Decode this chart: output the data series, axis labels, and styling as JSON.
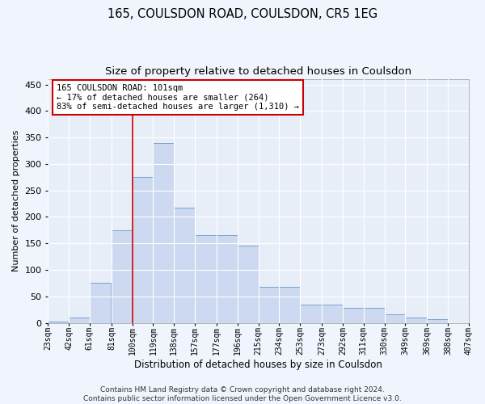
{
  "title1": "165, COULSDON ROAD, COULSDON, CR5 1EG",
  "title2": "Size of property relative to detached houses in Coulsdon",
  "xlabel": "Distribution of detached houses by size in Coulsdon",
  "ylabel": "Number of detached properties",
  "bar_left_edges": [
    23,
    42,
    61,
    81,
    100,
    119,
    138,
    157,
    177,
    196,
    215,
    234,
    253,
    273,
    292,
    311,
    330,
    349,
    369,
    388
  ],
  "bar_widths": [
    19,
    19,
    19,
    19,
    19,
    19,
    19,
    20,
    19,
    19,
    19,
    19,
    20,
    19,
    19,
    19,
    19,
    20,
    19,
    19
  ],
  "bar_heights": [
    3,
    10,
    75,
    175,
    275,
    340,
    218,
    165,
    165,
    145,
    68,
    68,
    35,
    35,
    28,
    28,
    16,
    10,
    7,
    0
  ],
  "bar_color": "#ccd9f0",
  "bar_edge_color": "#6699cc",
  "vline_x": 100,
  "vline_color": "#cc0000",
  "xlim": [
    23,
    407
  ],
  "ylim": [
    0,
    460
  ],
  "yticks": [
    0,
    50,
    100,
    150,
    200,
    250,
    300,
    350,
    400,
    450
  ],
  "xtick_labels": [
    "23sqm",
    "42sqm",
    "61sqm",
    "81sqm",
    "100sqm",
    "119sqm",
    "138sqm",
    "157sqm",
    "177sqm",
    "196sqm",
    "215sqm",
    "234sqm",
    "253sqm",
    "273sqm",
    "292sqm",
    "311sqm",
    "330sqm",
    "349sqm",
    "369sqm",
    "388sqm",
    "407sqm"
  ],
  "xtick_positions": [
    23,
    42,
    61,
    81,
    100,
    119,
    138,
    157,
    177,
    196,
    215,
    234,
    253,
    273,
    292,
    311,
    330,
    349,
    369,
    388,
    407
  ],
  "annotation_text": "165 COULSDON ROAD: 101sqm\n← 17% of detached houses are smaller (264)\n83% of semi-detached houses are larger (1,310) →",
  "footer_text": "Contains HM Land Registry data © Crown copyright and database right 2024.\nContains public sector information licensed under the Open Government Licence v3.0.",
  "bg_color": "#f0f4fc",
  "plot_bg_color": "#e8eef8",
  "grid_color": "#ffffff",
  "title1_fontsize": 10.5,
  "title2_fontsize": 9.5,
  "xlabel_fontsize": 8.5,
  "ylabel_fontsize": 8,
  "annotation_fontsize": 7.5,
  "footer_fontsize": 6.5,
  "tick_fontsize": 7,
  "ytick_fontsize": 8
}
